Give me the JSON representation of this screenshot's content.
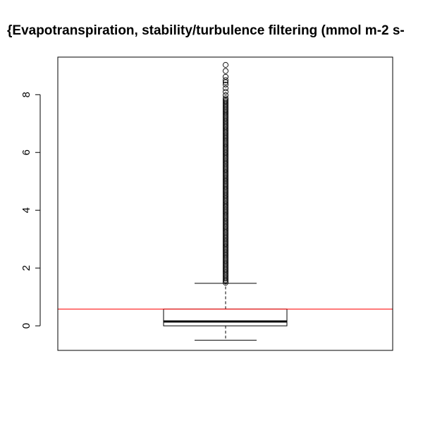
{
  "chart_data": {
    "type": "boxplot",
    "title": "{Evapotranspiration, stability/turbulence filtering (mmol m-2 s-",
    "xlabel": "",
    "ylabel": "",
    "ylim": [
      -0.85,
      9.3
    ],
    "yticks": [
      0,
      2,
      4,
      6,
      8
    ],
    "box": {
      "lower_whisker": -0.5,
      "q1": 0.0,
      "median": 0.15,
      "q3": 0.58,
      "upper_whisker": 1.47,
      "outlier_range": [
        1.47,
        9.03
      ],
      "highest_outliers": [
        9.03,
        8.82,
        8.62,
        8.5,
        8.43,
        8.35,
        8.22,
        8.1,
        7.98
      ]
    },
    "reference_line": {
      "y": 0.58,
      "color": "#ff0000"
    },
    "colors": {
      "box": "#000000",
      "reference_line": "#ff0000",
      "background": "#ffffff"
    }
  }
}
